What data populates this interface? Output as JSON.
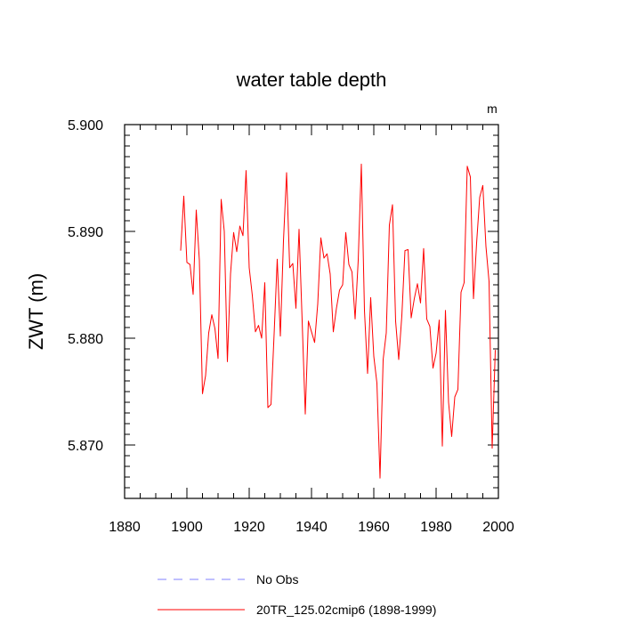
{
  "chart_data": {
    "type": "line",
    "title": "water table depth",
    "units": "m",
    "xlabel": "",
    "ylabel": "ZWT  (m)",
    "xlim": [
      1880,
      2000
    ],
    "ylim": [
      5.865,
      5.9
    ],
    "x_ticks": [
      1880,
      1900,
      1920,
      1940,
      1960,
      1980,
      2000
    ],
    "y_ticks": [
      5.87,
      5.88,
      5.89,
      5.9
    ],
    "x_tick_labels": [
      "1880",
      "1900",
      "1920",
      "1940",
      "1960",
      "1980",
      "2000"
    ],
    "y_tick_labels": [
      "5.870",
      "5.880",
      "5.890",
      "5.900"
    ],
    "legend_position": "bottom-left, below plot",
    "series": [
      {
        "name": "No Obs",
        "color": "#8080ff",
        "dashed": true,
        "x": [],
        "y": []
      },
      {
        "name": "20TR_125.02cmip6 (1898-1999)",
        "color": "#ff0000",
        "dashed": false,
        "x": [
          1898,
          1899,
          1900,
          1901,
          1902,
          1903,
          1904,
          1905,
          1906,
          1907,
          1908,
          1909,
          1910,
          1911,
          1912,
          1913,
          1914,
          1915,
          1916,
          1917,
          1918,
          1919,
          1920,
          1921,
          1922,
          1923,
          1924,
          1925,
          1926,
          1927,
          1928,
          1929,
          1930,
          1931,
          1932,
          1933,
          1934,
          1935,
          1936,
          1937,
          1938,
          1939,
          1940,
          1941,
          1942,
          1943,
          1944,
          1945,
          1946,
          1947,
          1948,
          1949,
          1950,
          1951,
          1952,
          1953,
          1954,
          1955,
          1956,
          1957,
          1958,
          1959,
          1960,
          1961,
          1962,
          1963,
          1964,
          1965,
          1966,
          1967,
          1968,
          1969,
          1970,
          1971,
          1972,
          1973,
          1974,
          1975,
          1976,
          1977,
          1978,
          1979,
          1980,
          1981,
          1982,
          1983,
          1984,
          1985,
          1986,
          1987,
          1988,
          1989,
          1990,
          1991,
          1992,
          1993,
          1994,
          1995,
          1996,
          1997,
          1998,
          1999
        ],
        "y": [
          5.8882,
          5.8933,
          5.8871,
          5.8869,
          5.8841,
          5.892,
          5.8873,
          5.8748,
          5.8765,
          5.8805,
          5.8822,
          5.8809,
          5.8781,
          5.893,
          5.89,
          5.8778,
          5.886,
          5.8899,
          5.8881,
          5.8905,
          5.8896,
          5.8957,
          5.8866,
          5.884,
          5.8806,
          5.8812,
          5.88,
          5.8852,
          5.8735,
          5.8738,
          5.8804,
          5.8874,
          5.8802,
          5.8891,
          5.8955,
          5.8866,
          5.887,
          5.8828,
          5.8902,
          5.8816,
          5.8729,
          5.8816,
          5.8806,
          5.8796,
          5.8832,
          5.8894,
          5.8875,
          5.8879,
          5.886,
          5.8806,
          5.8828,
          5.8845,
          5.885,
          5.8899,
          5.8869,
          5.8862,
          5.8818,
          5.8873,
          5.8963,
          5.8826,
          5.8767,
          5.8838,
          5.8783,
          5.8758,
          5.8669,
          5.878,
          5.8805,
          5.8906,
          5.8925,
          5.8816,
          5.878,
          5.8821,
          5.8882,
          5.8883,
          5.8819,
          5.8837,
          5.8851,
          5.8833,
          5.8884,
          5.8818,
          5.8811,
          5.8772,
          5.8786,
          5.8817,
          5.8699,
          5.8826,
          5.874,
          5.8708,
          5.8745,
          5.8752,
          5.8843,
          5.8852,
          5.8961,
          5.8951,
          5.8837,
          5.8889,
          5.8932,
          5.8943,
          5.8886,
          5.8853,
          5.8697,
          5.8789
        ]
      }
    ]
  }
}
